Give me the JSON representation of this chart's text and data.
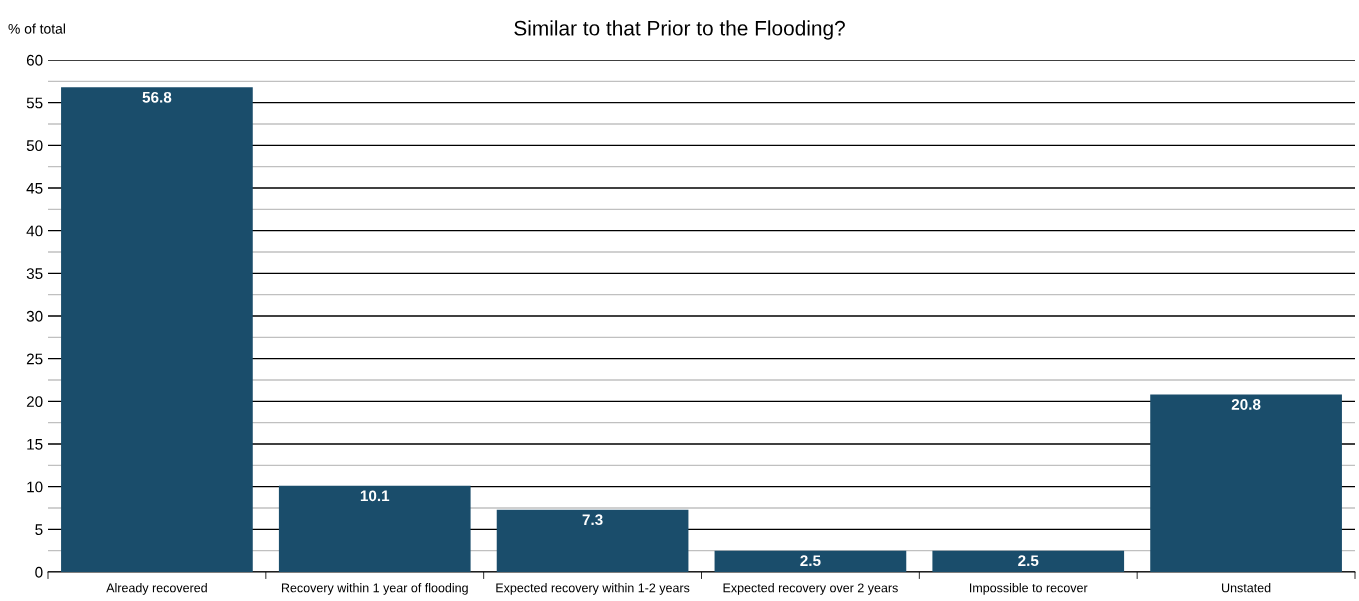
{
  "chart_data": {
    "type": "bar",
    "title": "Similar to that Prior to the Flooding?",
    "ylabel": "% of total",
    "categories": [
      "Already recovered",
      "Recovery within 1 year of flooding",
      "Expected recovery within 1-2 years",
      "Expected recovery over 2 years",
      "Impossible to recover",
      "Unstated"
    ],
    "values": [
      56.8,
      10.1,
      7.3,
      2.5,
      2.5,
      20.8
    ],
    "color": "#1a4d6b",
    "ylim": [
      0,
      60
    ],
    "yticks": [
      0,
      5,
      10,
      15,
      20,
      25,
      30,
      35,
      40,
      45,
      50,
      55,
      60
    ],
    "grid": "y",
    "data_labels": true
  }
}
